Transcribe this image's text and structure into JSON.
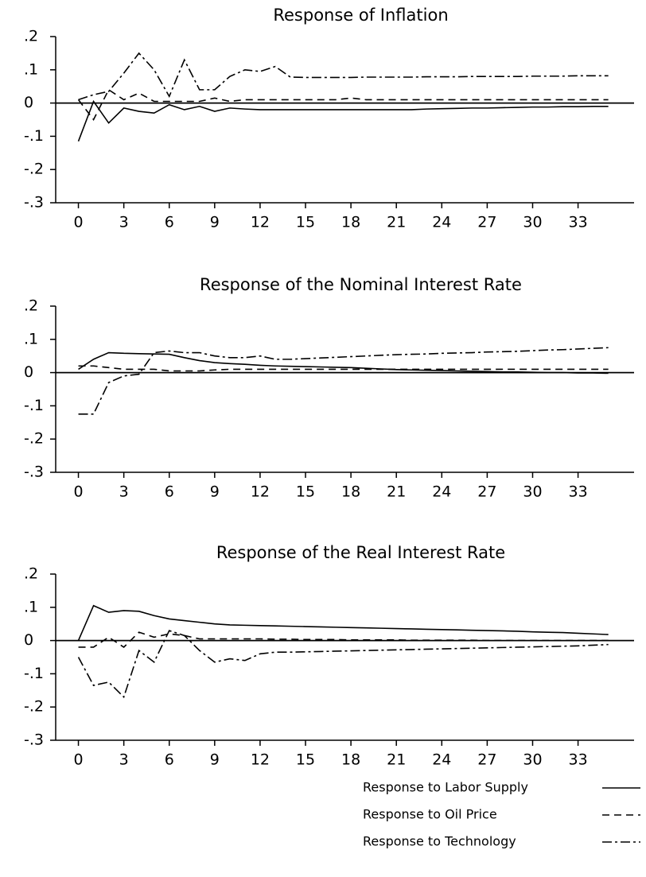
{
  "chart_data": [
    {
      "type": "line",
      "title": "Response of Inflation",
      "x": [
        0,
        1,
        2,
        3,
        4,
        5,
        6,
        7,
        8,
        9,
        10,
        11,
        12,
        13,
        14,
        15,
        16,
        17,
        18,
        19,
        20,
        21,
        22,
        23,
        24,
        25,
        26,
        27,
        28,
        29,
        30,
        31,
        32,
        33,
        34,
        35
      ],
      "xlim": [
        -1.5,
        36.7
      ],
      "xticks": [
        0,
        3,
        6,
        9,
        12,
        15,
        18,
        21,
        24,
        27,
        30,
        33
      ],
      "ylim": [
        -0.3,
        0.2
      ],
      "yticks": [
        {
          "value": 0.2,
          "label": ".2"
        },
        {
          "value": 0.1,
          "label": ".1"
        },
        0,
        {
          "value": -0.1,
          "label": "-.1"
        },
        {
          "value": -0.2,
          "label": "-.2"
        },
        {
          "value": -0.3,
          "label": "-.3"
        }
      ],
      "zero_line": true,
      "series": [
        {
          "name": "Response to Labor Supply",
          "color": "#000",
          "dash": "solid",
          "values": [
            -0.115,
            0.005,
            -0.06,
            -0.015,
            -0.025,
            -0.03,
            -0.005,
            -0.02,
            -0.01,
            -0.025,
            -0.015,
            -0.018,
            -0.02,
            -0.02,
            -0.02,
            -0.02,
            -0.02,
            -0.02,
            -0.02,
            -0.02,
            -0.02,
            -0.02,
            -0.02,
            -0.018,
            -0.017,
            -0.016,
            -0.015,
            -0.015,
            -0.014,
            -0.013,
            -0.012,
            -0.012,
            -0.011,
            -0.011,
            -0.01,
            -0.01
          ]
        },
        {
          "name": "Response to Oil Price",
          "color": "#000",
          "dash": "dashed",
          "values": [
            0.01,
            -0.05,
            0.04,
            0.01,
            0.03,
            0.005,
            0.005,
            0.005,
            0.005,
            0.015,
            0.005,
            0.01,
            0.01,
            0.01,
            0.01,
            0.01,
            0.01,
            0.01,
            0.015,
            0.01,
            0.01,
            0.01,
            0.01,
            0.01,
            0.01,
            0.01,
            0.01,
            0.01,
            0.01,
            0.01,
            0.01,
            0.01,
            0.01,
            0.01,
            0.01,
            0.01
          ]
        },
        {
          "name": "Response to Technology",
          "color": "#000",
          "dash": "dashdot",
          "values": [
            0.01,
            0.025,
            0.035,
            0.09,
            0.15,
            0.1,
            0.02,
            0.13,
            0.04,
            0.04,
            0.08,
            0.1,
            0.095,
            0.11,
            0.078,
            0.077,
            0.077,
            0.077,
            0.077,
            0.078,
            0.078,
            0.078,
            0.078,
            0.079,
            0.079,
            0.079,
            0.08,
            0.08,
            0.08,
            0.08,
            0.081,
            0.081,
            0.081,
            0.082,
            0.082,
            0.082
          ]
        }
      ]
    },
    {
      "type": "line",
      "title": "Response of the Nominal Interest Rate",
      "x": [
        0,
        1,
        2,
        3,
        4,
        5,
        6,
        7,
        8,
        9,
        10,
        11,
        12,
        13,
        14,
        15,
        16,
        17,
        18,
        19,
        20,
        21,
        22,
        23,
        24,
        25,
        26,
        27,
        28,
        29,
        30,
        31,
        32,
        33,
        34,
        35
      ],
      "xlim": [
        -1.5,
        36.7
      ],
      "xticks": [
        0,
        3,
        6,
        9,
        12,
        15,
        18,
        21,
        24,
        27,
        30,
        33
      ],
      "ylim": [
        -0.3,
        0.2
      ],
      "yticks": [
        {
          "value": 0.2,
          "label": ".2"
        },
        {
          "value": 0.1,
          "label": ".1"
        },
        0,
        {
          "value": -0.1,
          "label": "-.1"
        },
        {
          "value": -0.2,
          "label": "-.2"
        },
        {
          "value": -0.3,
          "label": "-.3"
        }
      ],
      "zero_line": true,
      "series": [
        {
          "color": "#000",
          "dash": "solid",
          "values": [
            0.01,
            0.04,
            0.06,
            0.058,
            0.057,
            0.056,
            0.055,
            0.045,
            0.036,
            0.03,
            0.027,
            0.025,
            0.022,
            0.02,
            0.019,
            0.018,
            0.017,
            0.016,
            0.015,
            0.013,
            0.011,
            0.009,
            0.008,
            0.007,
            0.006,
            0.005,
            0.004,
            0.003,
            0.002,
            0.002,
            0.001,
            0.0,
            0.0,
            -0.001,
            -0.001,
            -0.002
          ]
        },
        {
          "color": "#000",
          "dash": "dashed",
          "values": [
            0.02,
            0.02,
            0.015,
            0.01,
            0.01,
            0.01,
            0.005,
            0.005,
            0.005,
            0.008,
            0.01,
            0.01,
            0.01,
            0.01,
            0.01,
            0.01,
            0.01,
            0.01,
            0.01,
            0.01,
            0.01,
            0.01,
            0.01,
            0.01,
            0.01,
            0.01,
            0.01,
            0.01,
            0.01,
            0.01,
            0.01,
            0.01,
            0.01,
            0.01,
            0.01,
            0.01
          ]
        },
        {
          "color": "#000",
          "dash": "dashdot",
          "values": [
            -0.125,
            -0.125,
            -0.03,
            -0.01,
            -0.005,
            0.06,
            0.065,
            0.06,
            0.06,
            0.05,
            0.045,
            0.045,
            0.05,
            0.04,
            0.04,
            0.042,
            0.044,
            0.046,
            0.048,
            0.05,
            0.052,
            0.054,
            0.055,
            0.056,
            0.058,
            0.059,
            0.06,
            0.062,
            0.063,
            0.064,
            0.066,
            0.068,
            0.069,
            0.071,
            0.073,
            0.075
          ]
        }
      ]
    },
    {
      "type": "line",
      "title": "Response of the Real Interest Rate",
      "x": [
        0,
        1,
        2,
        3,
        4,
        5,
        6,
        7,
        8,
        9,
        10,
        11,
        12,
        13,
        14,
        15,
        16,
        17,
        18,
        19,
        20,
        21,
        22,
        23,
        24,
        25,
        26,
        27,
        28,
        29,
        30,
        31,
        32,
        33,
        34,
        35
      ],
      "xlim": [
        -1.5,
        36.7
      ],
      "xticks": [
        0,
        3,
        6,
        9,
        12,
        15,
        18,
        21,
        24,
        27,
        30,
        33
      ],
      "ylim": [
        -0.3,
        0.2
      ],
      "yticks": [
        {
          "value": 0.2,
          "label": ".2"
        },
        {
          "value": 0.1,
          "label": ".1"
        },
        0,
        {
          "value": -0.1,
          "label": "-.1"
        },
        {
          "value": -0.2,
          "label": "-.2"
        },
        {
          "value": -0.3,
          "label": "-.3"
        }
      ],
      "zero_line": true,
      "series": [
        {
          "color": "#000",
          "dash": "solid",
          "values": [
            0.0,
            0.105,
            0.085,
            0.09,
            0.088,
            0.075,
            0.065,
            0.06,
            0.055,
            0.05,
            0.047,
            0.046,
            0.045,
            0.044,
            0.043,
            0.042,
            0.041,
            0.04,
            0.039,
            0.038,
            0.037,
            0.036,
            0.035,
            0.034,
            0.033,
            0.032,
            0.031,
            0.03,
            0.029,
            0.028,
            0.026,
            0.025,
            0.024,
            0.022,
            0.02,
            0.018
          ]
        },
        {
          "color": "#000",
          "dash": "dashed",
          "values": [
            -0.02,
            -0.02,
            0.01,
            -0.02,
            0.025,
            0.01,
            0.02,
            0.015,
            0.005,
            0.005,
            0.005,
            0.005,
            0.005,
            0.004,
            0.004,
            0.003,
            0.003,
            0.003,
            0.002,
            0.002,
            0.002,
            0.002,
            0.001,
            0.001,
            0.001,
            0.001,
            0.001,
            0.0,
            0.0,
            0.0,
            0.0,
            0.0,
            0.0,
            0.0,
            0.0,
            0.0
          ]
        },
        {
          "color": "#000",
          "dash": "dashdot",
          "values": [
            -0.05,
            -0.135,
            -0.125,
            -0.17,
            -0.03,
            -0.065,
            0.03,
            0.015,
            -0.03,
            -0.065,
            -0.055,
            -0.06,
            -0.04,
            -0.035,
            -0.035,
            -0.034,
            -0.033,
            -0.032,
            -0.031,
            -0.03,
            -0.029,
            -0.028,
            -0.027,
            -0.026,
            -0.025,
            -0.024,
            -0.023,
            -0.022,
            -0.021,
            -0.02,
            -0.019,
            -0.018,
            -0.017,
            -0.016,
            -0.014,
            -0.012
          ]
        }
      ]
    }
  ]
}
